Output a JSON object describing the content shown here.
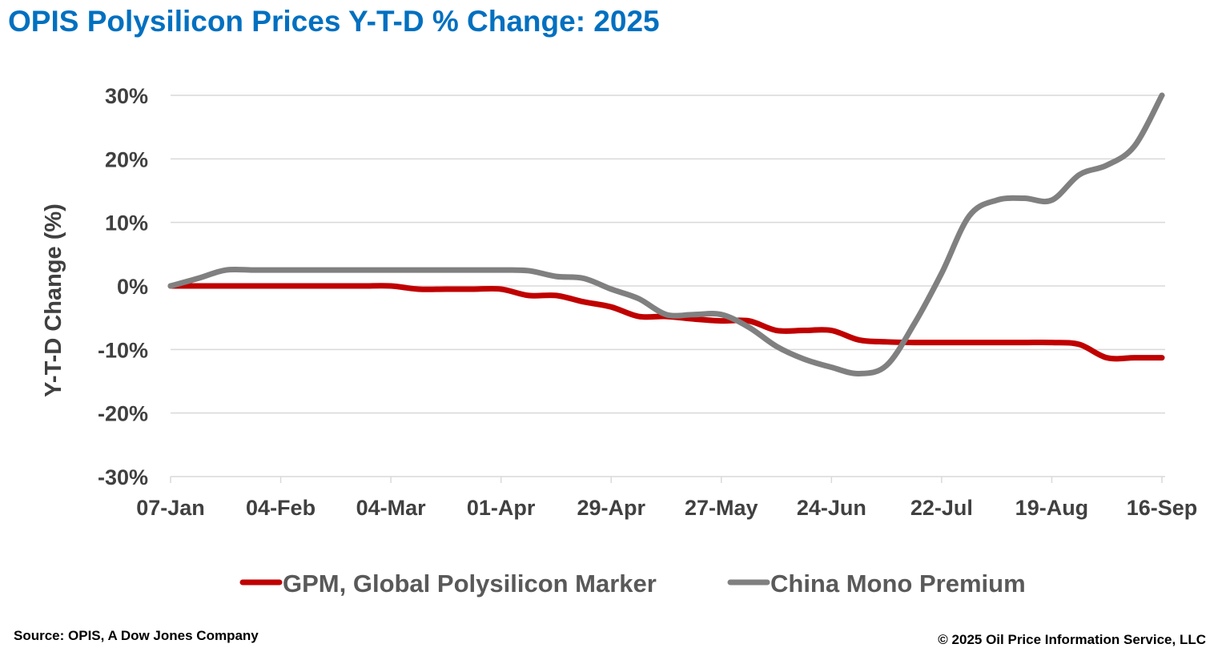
{
  "title": "OPIS Polysilicon Prices Y-T-D % Change: 2025",
  "source": "Source: OPIS, A Dow Jones Company",
  "copyright": "© 2025 Oil Price Information Service, LLC",
  "colors": {
    "title": "#0070c0",
    "gpm": "#c00000",
    "china_mono": "#808080",
    "grid": "#d9d9d9"
  },
  "chart_data": {
    "type": "line",
    "title": "OPIS Polysilicon Prices Y-T-D % Change: 2025",
    "ylabel": "Y-T-D Change (%)",
    "xlabel": "",
    "ylim": [
      -30,
      30
    ],
    "yticks": [
      30,
      20,
      10,
      0,
      -10,
      -20,
      -30
    ],
    "ytick_labels": [
      "30%",
      "20%",
      "10%",
      "0%",
      "-10%",
      "-20%",
      "-30%"
    ],
    "xtick_labels": [
      "07-Jan",
      "04-Feb",
      "04-Mar",
      "01-Apr",
      "29-Apr",
      "27-May",
      "24-Jun",
      "22-Jul",
      "19-Aug",
      "16-Sep"
    ],
    "x_interval": "weekly",
    "grid": "horizontal",
    "legend_position": "bottom",
    "series": [
      {
        "name": "GPM, Global Polysilicon Marker",
        "color": "#c00000",
        "values": [
          0,
          0,
          0,
          0,
          0,
          0,
          0,
          0,
          0,
          -0.5,
          -0.5,
          -0.5,
          -0.5,
          -1.5,
          -1.5,
          -2.5,
          -3.3,
          -4.8,
          -4.8,
          -5.2,
          -5.5,
          -5.5,
          -7.0,
          -7.0,
          -7.0,
          -8.5,
          -8.8,
          -8.9,
          -8.9,
          -8.9,
          -8.9,
          -8.9,
          -8.9,
          -9.2,
          -11.3,
          -11.3,
          -11.3
        ]
      },
      {
        "name": "China Mono Premium",
        "color": "#808080",
        "values": [
          0,
          1.2,
          2.5,
          2.5,
          2.5,
          2.5,
          2.5,
          2.5,
          2.5,
          2.5,
          2.5,
          2.5,
          2.5,
          2.4,
          1.5,
          1.2,
          -0.5,
          -2.0,
          -4.5,
          -4.5,
          -4.5,
          -6.5,
          -9.5,
          -11.5,
          -12.8,
          -13.8,
          -12.5,
          -6.0,
          2.0,
          11.0,
          13.5,
          13.8,
          13.5,
          17.5,
          19.0,
          22.0,
          30.0
        ]
      }
    ]
  }
}
